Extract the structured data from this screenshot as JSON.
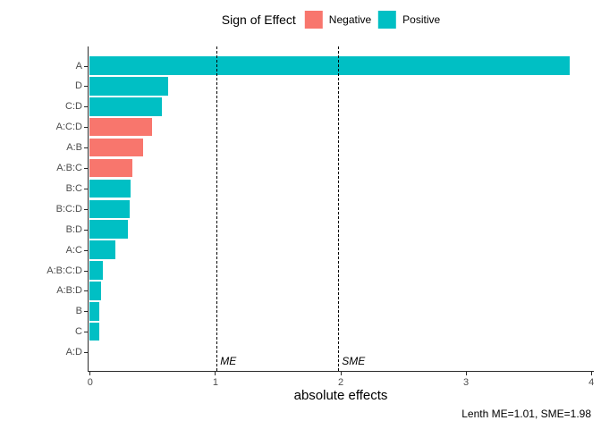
{
  "legend": {
    "title": "Sign of Effect",
    "items": [
      {
        "label": "Negative",
        "color": "#F8766D"
      },
      {
        "label": "Positive",
        "color": "#00BFC4"
      }
    ]
  },
  "chart_data": {
    "type": "bar",
    "orientation": "horizontal",
    "title": "",
    "xlabel": "absolute effects",
    "ylabel": "",
    "xlim": [
      0,
      4
    ],
    "x_ticks": [
      0,
      1,
      2,
      3,
      4
    ],
    "grid": false,
    "legend_position": "top",
    "categories": [
      "A",
      "D",
      "C:D",
      "A:C:D",
      "A:B",
      "A:B:C",
      "B:C",
      "B:C:D",
      "B:D",
      "A:C",
      "A:B:C:D",
      "A:B:D",
      "B",
      "C",
      "A:D"
    ],
    "values": [
      3.83,
      0.63,
      0.58,
      0.5,
      0.43,
      0.34,
      0.33,
      0.32,
      0.31,
      0.21,
      0.11,
      0.09,
      0.08,
      0.08,
      0.0
    ],
    "signs": [
      "Positive",
      "Positive",
      "Positive",
      "Negative",
      "Negative",
      "Negative",
      "Positive",
      "Positive",
      "Positive",
      "Positive",
      "Positive",
      "Positive",
      "Positive",
      "Positive",
      "Positive"
    ],
    "colors": {
      "Negative": "#F8766D",
      "Positive": "#00BFC4"
    },
    "axis_text_color": "#4d4d4d",
    "reference_lines": [
      {
        "label": "ME",
        "value": 1.01
      },
      {
        "label": "SME",
        "value": 1.98
      }
    ],
    "caption": "Lenth ME=1.01, SME=1.98"
  }
}
